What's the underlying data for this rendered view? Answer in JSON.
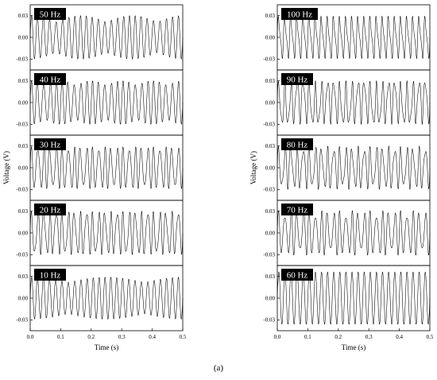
{
  "chart_data": {
    "type": "line",
    "caption": "(a)",
    "columns": [
      {
        "xlabel": "Time (s)",
        "ylabel": "Voltage (V)",
        "xticks": [
          "0.0",
          "0.1",
          "0.2",
          "0.3",
          "0.4",
          "0.5"
        ],
        "xlim": [
          0,
          0.5
        ],
        "panels": [
          {
            "label": "50 Hz",
            "ylim": [
              -0.045,
              0.045
            ],
            "yticks": [
              "0.03",
              "0.00",
              "-0.03"
            ],
            "freq": 50,
            "beat": 6,
            "amp": 0.03,
            "mod": 0.3
          },
          {
            "label": "40 Hz",
            "ylim": [
              -0.045,
              0.045
            ],
            "yticks": [
              "0.03",
              "0.00",
              "-0.03"
            ],
            "freq": 50,
            "beat": 10,
            "amp": 0.03,
            "mod": 0.22
          },
          {
            "label": "30 Hz",
            "ylim": [
              -0.045,
              0.045
            ],
            "yticks": [
              "0.03",
              "0.00",
              "-0.03"
            ],
            "freq": 50,
            "beat": 20,
            "amp": 0.029,
            "mod": 0.2
          },
          {
            "label": "20 Hz",
            "ylim": [
              -0.045,
              0.045
            ],
            "yticks": [
              "0.03",
              "0.00",
              "-0.03"
            ],
            "freq": 50,
            "beat": 30,
            "amp": 0.03,
            "mod": 0.22
          },
          {
            "label": "10 Hz",
            "ylim": [
              -0.045,
              0.045
            ],
            "yticks": [
              "0.03",
              "0.00",
              "-0.03"
            ],
            "freq": 50,
            "beat": 4,
            "amp": 0.029,
            "mod": 0.25
          }
        ]
      },
      {
        "xlabel": "Time (s)",
        "ylabel": "Voltage (V)",
        "xticks": [
          "0.0",
          "0.1",
          "0.2",
          "0.3",
          "0.4",
          "0.5"
        ],
        "xlim": [
          0,
          0.5
        ],
        "panels": [
          {
            "label": "100 Hz",
            "ylim": [
              -0.045,
              0.045
            ],
            "yticks": [
              "0.03",
              "0.00",
              "-0.03"
            ],
            "freq": 50,
            "beat": 50,
            "amp": 0.03,
            "mod": 0.22
          },
          {
            "label": "90 Hz",
            "ylim": [
              -0.045,
              0.045
            ],
            "yticks": [
              "0.03",
              "0.00",
              "-0.03"
            ],
            "freq": 50,
            "beat": 40,
            "amp": 0.03,
            "mod": 0.2
          },
          {
            "label": "80 Hz",
            "ylim": [
              -0.045,
              0.045
            ],
            "yticks": [
              "0.03",
              "0.00",
              "-0.03"
            ],
            "freq": 50,
            "beat": 30,
            "amp": 0.03,
            "mod": 0.35
          },
          {
            "label": "70 Hz",
            "ylim": [
              -0.045,
              0.045
            ],
            "yticks": [
              "0.03",
              "0.00",
              "-0.03"
            ],
            "freq": 50,
            "beat": 20,
            "amp": 0.031,
            "mod": 0.35
          },
          {
            "label": "60 Hz",
            "ylim": [
              -0.045,
              0.045
            ],
            "yticks": [
              "0.03",
              "0.00",
              "-0.03"
            ],
            "freq": 50,
            "beat": 0,
            "amp": 0.036,
            "mod": 0.0
          }
        ]
      }
    ]
  }
}
